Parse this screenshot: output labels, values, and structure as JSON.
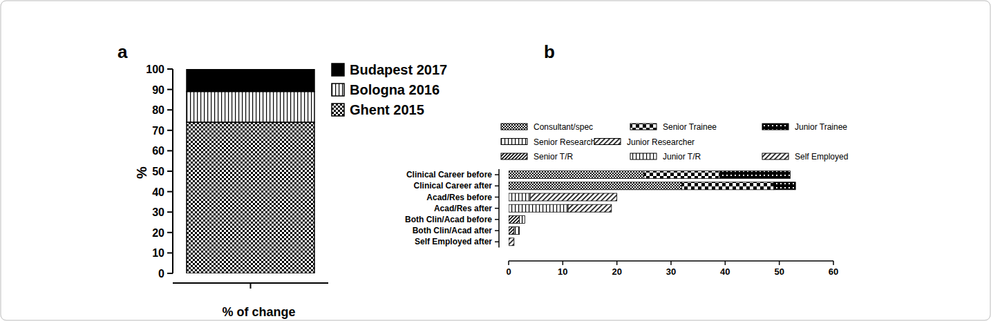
{
  "chart_data": [
    {
      "type": "bar",
      "title": "a",
      "stacked": true,
      "legend": "right",
      "categories": [
        null
      ],
      "x_label": "% of change",
      "y_label": "%",
      "ylim": [
        0,
        100
      ],
      "yticks": [
        0,
        10,
        20,
        30,
        40,
        50,
        60,
        70,
        80,
        90,
        100
      ],
      "series": [
        {
          "name": "Ghent 2015",
          "color": "#000000",
          "values": [
            74
          ]
        },
        {
          "name": "Bologna 2016",
          "color": "#000000",
          "values": [
            15
          ]
        },
        {
          "name": "Budapest 2017",
          "color": "#000000",
          "values": [
            11
          ]
        }
      ]
    },
    {
      "type": "bar",
      "title": "b",
      "stacked": true,
      "orientation": "horizontal",
      "legend": "top",
      "categories": [
        "Clinical Career before",
        "Clinical Career after",
        "Acad/Res before",
        "Acad/Res after",
        "Both Clin/Acad before",
        "Both Clin/Acad after",
        "Self Employed after"
      ],
      "xlim": [
        0,
        60
      ],
      "xticks": [
        0,
        10,
        20,
        30,
        40,
        50,
        60
      ],
      "series": [
        {
          "name": "Consultant/spec",
          "color": "#000000",
          "values": [
            25,
            32,
            null,
            null,
            null,
            null,
            null
          ]
        },
        {
          "name": "Senior Trainee",
          "color": "#000000",
          "values": [
            14,
            17,
            null,
            null,
            null,
            null,
            null
          ]
        },
        {
          "name": "Junior Trainee",
          "color": "#000000",
          "values": [
            13,
            4,
            null,
            null,
            null,
            null,
            null
          ]
        },
        {
          "name": "Senior Researcher",
          "color": "#000000",
          "values": [
            null,
            null,
            4,
            11,
            null,
            null,
            null
          ]
        },
        {
          "name": "Junior Researcher",
          "color": "#000000",
          "values": [
            null,
            null,
            16,
            8,
            null,
            null,
            null
          ]
        },
        {
          "name": "Senior T/R",
          "color": "#000000",
          "values": [
            null,
            null,
            null,
            null,
            2,
            1,
            null
          ]
        },
        {
          "name": "Junior T/R",
          "color": "#000000",
          "values": [
            null,
            null,
            null,
            null,
            1,
            1,
            null
          ]
        },
        {
          "name": "Self Employed",
          "color": "#000000",
          "values": [
            null,
            null,
            null,
            null,
            null,
            null,
            1
          ]
        }
      ]
    }
  ]
}
